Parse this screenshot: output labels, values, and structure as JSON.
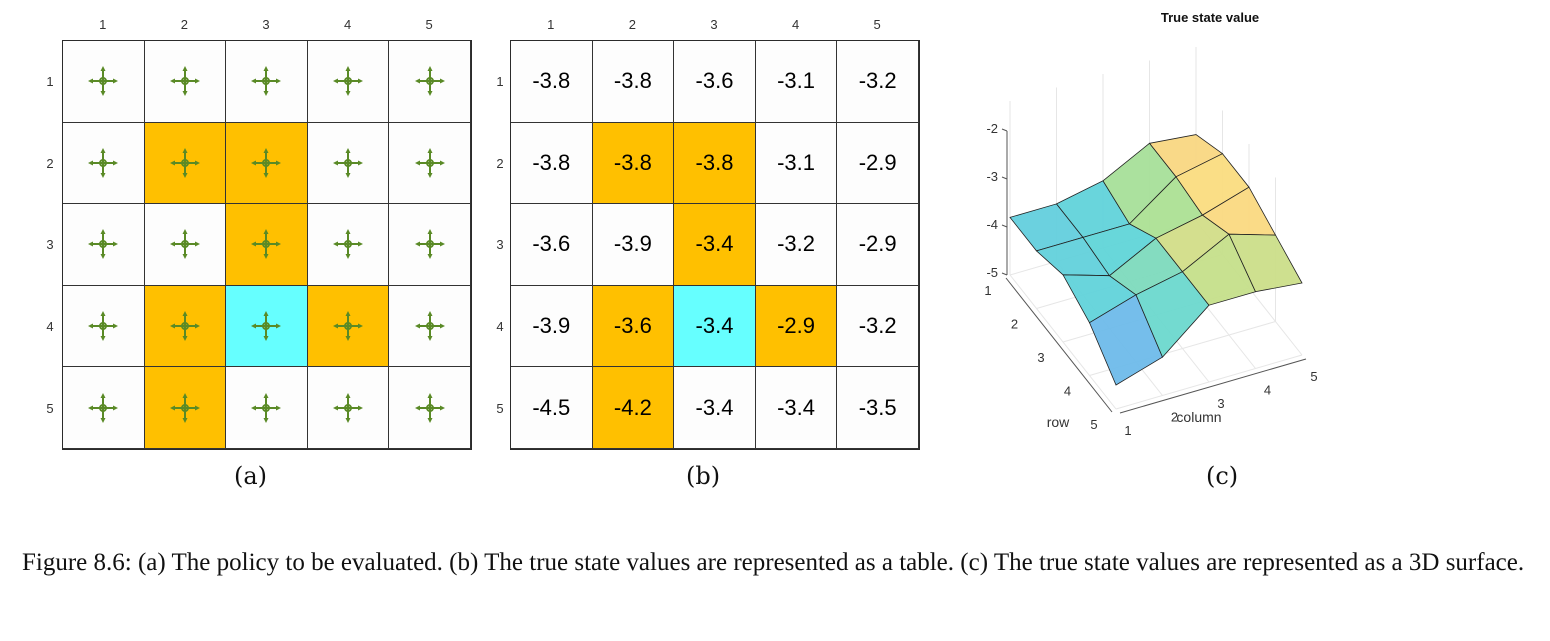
{
  "figure": {
    "subfigure_labels": [
      "(a)",
      "(b)",
      "(c)"
    ],
    "caption": "Figure 8.6: (a) The policy to be evaluated. (b) The true state values are represented as a table. (c) The true state values are represented as a 3D surface."
  },
  "colors": {
    "forbidden": "#ffc000",
    "target": "#66ffff",
    "arrow": "#5a8a26",
    "cell_bg": "#fdfdfd"
  },
  "grid_a": {
    "col_labels": [
      "1",
      "2",
      "3",
      "4",
      "5"
    ],
    "row_labels": [
      "1",
      "2",
      "3",
      "4",
      "5"
    ],
    "cell_icon": "four-direction-arrow-icon",
    "cell_types": [
      [
        "n",
        "n",
        "n",
        "n",
        "n"
      ],
      [
        "n",
        "f",
        "f",
        "n",
        "n"
      ],
      [
        "n",
        "n",
        "f",
        "n",
        "n"
      ],
      [
        "n",
        "f",
        "t",
        "f",
        "n"
      ],
      [
        "n",
        "f",
        "n",
        "n",
        "n"
      ]
    ]
  },
  "grid_b": {
    "col_labels": [
      "1",
      "2",
      "3",
      "4",
      "5"
    ],
    "row_labels": [
      "1",
      "2",
      "3",
      "4",
      "5"
    ],
    "values": [
      [
        "-3.8",
        "-3.8",
        "-3.6",
        "-3.1",
        "-3.2"
      ],
      [
        "-3.8",
        "-3.8",
        "-3.8",
        "-3.1",
        "-2.9"
      ],
      [
        "-3.6",
        "-3.9",
        "-3.4",
        "-3.2",
        "-2.9"
      ],
      [
        "-3.9",
        "-3.6",
        "-3.4",
        "-2.9",
        "-3.2"
      ],
      [
        "-4.5",
        "-4.2",
        "-3.4",
        "-3.4",
        "-3.5"
      ]
    ]
  },
  "chart_data": {
    "type": "surface3d",
    "title": "True state value",
    "xlabel": "column",
    "ylabel": "row",
    "zlabel": "",
    "x": [
      1,
      2,
      3,
      4,
      5
    ],
    "y": [
      1,
      2,
      3,
      4,
      5
    ],
    "z": [
      [
        -3.8,
        -3.8,
        -3.6,
        -3.1,
        -3.2
      ],
      [
        -3.8,
        -3.8,
        -3.8,
        -3.1,
        -2.9
      ],
      [
        -3.6,
        -3.9,
        -3.4,
        -3.2,
        -2.9
      ],
      [
        -3.9,
        -3.6,
        -3.4,
        -2.9,
        -3.2
      ],
      [
        -4.5,
        -4.2,
        -3.4,
        -3.4,
        -3.5
      ]
    ],
    "zlim": [
      -5,
      -2
    ],
    "z_ticks": [
      "-2",
      "-3",
      "-4",
      "-5"
    ],
    "x_ticks": [
      "1",
      "2",
      "3",
      "4",
      "5"
    ],
    "y_ticks": [
      "1",
      "2",
      "3",
      "4",
      "5"
    ],
    "colormap": "parula-like (purple→cyan→yellow)",
    "grid": true
  }
}
